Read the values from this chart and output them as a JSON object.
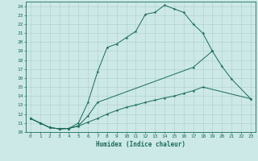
{
  "title": "",
  "xlabel": "Humidex (Indice chaleur)",
  "bg_color": "#cce9e7",
  "line_color": "#1a6b5a",
  "grid_color": "#aacfcc",
  "xlim": [
    -0.5,
    23.5
  ],
  "ylim": [
    10.0,
    24.5
  ],
  "xticks": [
    0,
    1,
    2,
    3,
    4,
    5,
    6,
    7,
    8,
    9,
    10,
    11,
    12,
    13,
    14,
    15,
    16,
    17,
    18,
    19,
    20,
    21,
    22,
    23
  ],
  "yticks": [
    10,
    11,
    12,
    13,
    14,
    15,
    16,
    17,
    18,
    19,
    20,
    21,
    22,
    23,
    24
  ],
  "line1_x": [
    0,
    1,
    2,
    3,
    4,
    5,
    6,
    7,
    8,
    9,
    10,
    11,
    12,
    13,
    14,
    15,
    16,
    17,
    18,
    19
  ],
  "line1_y": [
    11.5,
    11.0,
    10.5,
    10.35,
    10.4,
    11.0,
    13.3,
    16.7,
    19.4,
    19.8,
    20.5,
    21.2,
    23.1,
    23.3,
    24.1,
    23.7,
    23.3,
    22.0,
    21.0,
    19.0
  ],
  "line2_x": [
    0,
    1,
    2,
    3,
    4,
    5,
    6,
    7,
    17,
    19,
    20,
    21,
    23
  ],
  "line2_y": [
    11.5,
    11.0,
    10.5,
    10.35,
    10.4,
    10.7,
    11.8,
    13.3,
    17.2,
    19.0,
    17.3,
    15.9,
    13.7
  ],
  "line3_x": [
    0,
    1,
    2,
    3,
    4,
    5,
    6,
    7,
    8,
    9,
    10,
    11,
    12,
    13,
    14,
    15,
    16,
    17,
    18,
    23
  ],
  "line3_y": [
    11.5,
    11.0,
    10.5,
    10.35,
    10.4,
    10.65,
    11.1,
    11.5,
    12.0,
    12.4,
    12.75,
    13.0,
    13.3,
    13.55,
    13.8,
    14.0,
    14.3,
    14.6,
    15.0,
    13.7
  ]
}
